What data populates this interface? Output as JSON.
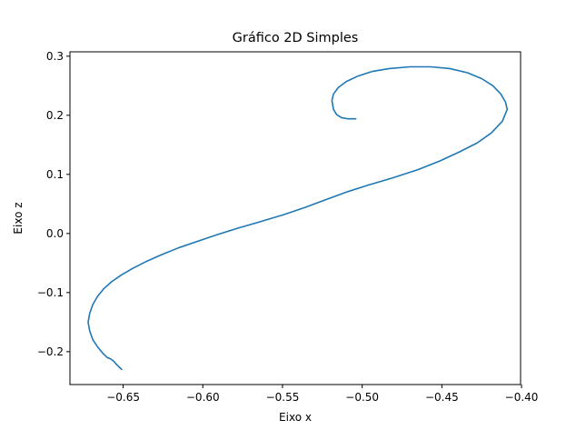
{
  "chart_data": {
    "type": "line",
    "title": "Gráfico 2D Simples",
    "xlabel": "Eixo x",
    "ylabel": "Eixo z",
    "xlim": [
      -0.6834,
      -0.4006
    ],
    "ylim": [
      -0.2556,
      0.3074
    ],
    "xticks": [
      -0.65,
      -0.6,
      -0.55,
      -0.5,
      -0.45,
      -0.4
    ],
    "xtick_labels": [
      "−0.65",
      "−0.60",
      "−0.55",
      "−0.50",
      "−0.45",
      "−0.40"
    ],
    "yticks": [
      -0.2,
      -0.1,
      0.0,
      0.1,
      0.2,
      0.3
    ],
    "ytick_labels": [
      "−0.2",
      "−0.1",
      "0.0",
      "0.1",
      "0.2",
      "0.3"
    ],
    "grid": false,
    "line_color": "#1f77b4",
    "series": [
      {
        "x": [
          -0.651,
          -0.654,
          -0.656,
          -0.658,
          -0.66,
          -0.663,
          -0.666,
          -0.669,
          -0.671,
          -0.672,
          -0.671,
          -0.669,
          -0.666,
          -0.662,
          -0.657,
          -0.651,
          -0.644,
          -0.636,
          -0.626,
          -0.615,
          -0.603,
          -0.591,
          -0.578,
          -0.564,
          -0.549,
          -0.536,
          -0.523,
          -0.51,
          -0.496,
          -0.481,
          -0.465,
          -0.451,
          -0.439,
          -0.428,
          -0.419,
          -0.412,
          -0.409,
          -0.41,
          -0.413,
          -0.418,
          -0.425,
          -0.434,
          -0.445,
          -0.457,
          -0.47,
          -0.483,
          -0.494,
          -0.503,
          -0.51,
          -0.515,
          -0.518,
          -0.519,
          -0.518,
          -0.516,
          -0.513,
          -0.509,
          -0.504
        ],
        "y": [
          -0.23,
          -0.222,
          -0.216,
          -0.212,
          -0.21,
          -0.202,
          -0.192,
          -0.18,
          -0.165,
          -0.15,
          -0.135,
          -0.12,
          -0.106,
          -0.093,
          -0.081,
          -0.07,
          -0.059,
          -0.048,
          -0.036,
          -0.024,
          -0.013,
          -0.002,
          0.009,
          0.02,
          0.032,
          0.044,
          0.057,
          0.07,
          0.082,
          0.094,
          0.108,
          0.123,
          0.138,
          0.153,
          0.17,
          0.19,
          0.21,
          0.222,
          0.236,
          0.25,
          0.262,
          0.272,
          0.279,
          0.282,
          0.282,
          0.279,
          0.274,
          0.266,
          0.257,
          0.247,
          0.236,
          0.225,
          0.21,
          0.201,
          0.196,
          0.194,
          0.194
        ]
      }
    ]
  }
}
